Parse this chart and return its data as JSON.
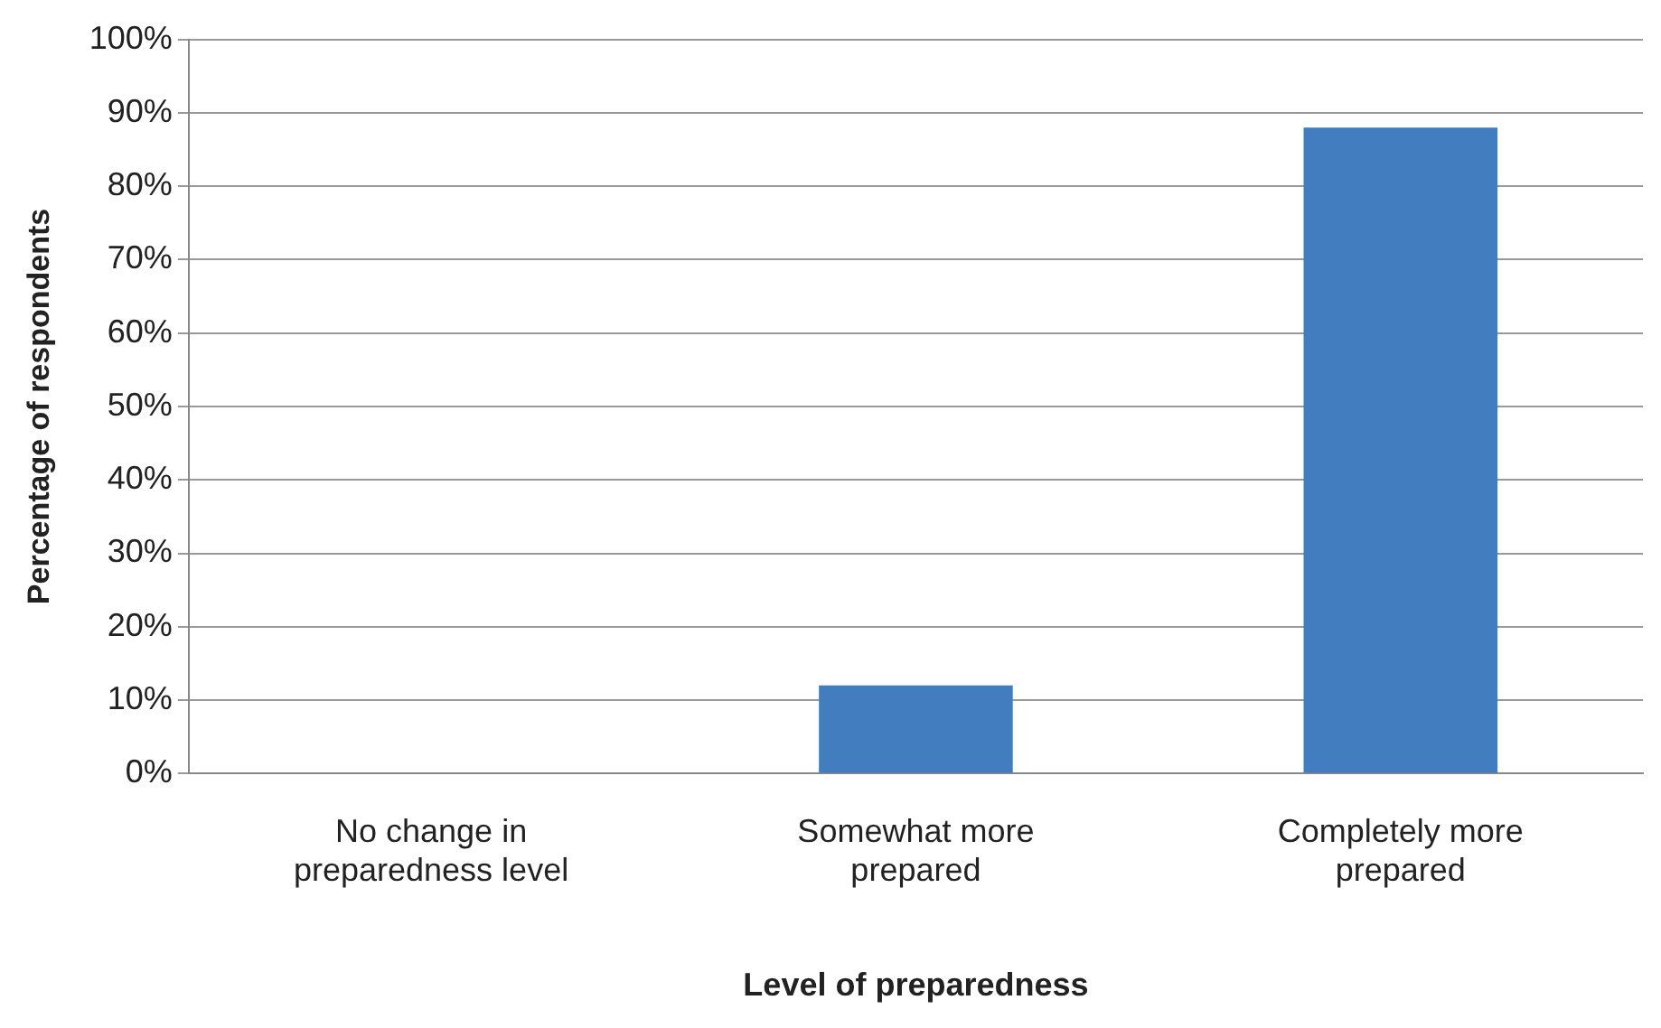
{
  "chart_data": {
    "type": "bar",
    "xlabel": "Level of preparedness",
    "ylabel": "Percentage of respondents",
    "categories": [
      "No change in preparedness level",
      "Somewhat more prepared",
      "Completely more prepared"
    ],
    "values": [
      0,
      12,
      88
    ],
    "color": "#417dbf",
    "ylim": [
      0,
      100
    ],
    "yticks": [
      {
        "value": 0,
        "label": "0%"
      },
      {
        "value": 10,
        "label": "10%"
      },
      {
        "value": 20,
        "label": "20%"
      },
      {
        "value": 30,
        "label": "30%"
      },
      {
        "value": 40,
        "label": "40%"
      },
      {
        "value": 50,
        "label": "50%"
      },
      {
        "value": 60,
        "label": "60%"
      },
      {
        "value": 70,
        "label": "70%"
      },
      {
        "value": 80,
        "label": "80%"
      },
      {
        "value": 90,
        "label": "90%"
      },
      {
        "value": 100,
        "label": "100%"
      }
    ],
    "grid": "y",
    "legend": false
  }
}
